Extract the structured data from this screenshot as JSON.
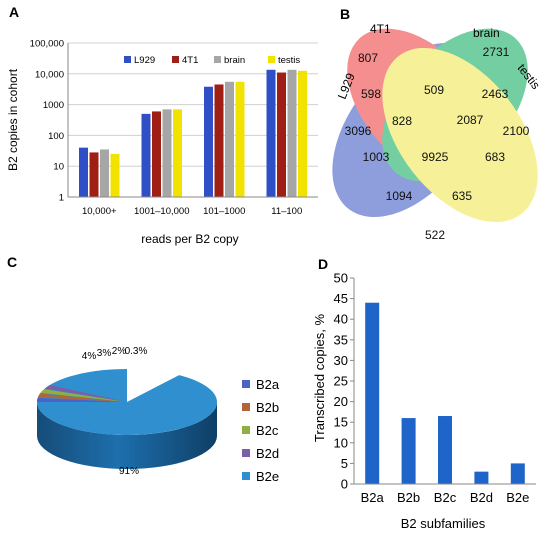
{
  "panel_labels": {
    "a": "A",
    "b": "B",
    "c": "C",
    "d": "D"
  },
  "chart_data": [
    {
      "panel": "A",
      "type": "bar",
      "ylabel": "B2 copies in cohort",
      "xlabel": "reads per B2 copy",
      "yscale": "log",
      "ylim": [
        1,
        100000
      ],
      "yticks": [
        "1",
        "10",
        "100",
        "1000",
        "10,000",
        "100,000"
      ],
      "grid": true,
      "legend_position": "top",
      "categories": [
        "10,000+",
        "1001–10,000",
        "101–1000",
        "11–100"
      ],
      "series": [
        {
          "name": "L929",
          "color": "#2f4fc7",
          "values": [
            40,
            500,
            3800,
            13500
          ]
        },
        {
          "name": "4T1",
          "color": "#a01f15",
          "values": [
            28,
            600,
            4500,
            11000
          ]
        },
        {
          "name": "brain",
          "color": "#a6a6a6",
          "values": [
            35,
            700,
            5500,
            13500
          ]
        },
        {
          "name": "testis",
          "color": "#f2e200",
          "values": [
            25,
            700,
            5500,
            12500
          ]
        }
      ]
    },
    {
      "panel": "B",
      "type": "venn",
      "sets": [
        {
          "name": "L929",
          "color": "#4a63c8"
        },
        {
          "name": "4T1",
          "color": "#f04a4a"
        },
        {
          "name": "brain",
          "color": "#1fb26a"
        },
        {
          "name": "testis",
          "color": "#f2ea5a"
        }
      ],
      "regions": [
        {
          "sets": "4T1 only",
          "value": "807"
        },
        {
          "sets": "brain only",
          "value": "2731"
        },
        {
          "sets": "L929 only",
          "value": "3096"
        },
        {
          "sets": "testis only",
          "value": "2100"
        },
        {
          "sets": "L929+4T1",
          "value": "598"
        },
        {
          "sets": "4T1+brain",
          "value": "509"
        },
        {
          "sets": "brain+testis",
          "value": "2463"
        },
        {
          "sets": "L929+4T1+brain",
          "value": "828"
        },
        {
          "sets": "4T1+brain+testis",
          "value": "2087"
        },
        {
          "sets": "all",
          "value": "9925"
        },
        {
          "sets": "L929+brain",
          "value": "1003"
        },
        {
          "sets": "4T1+testis",
          "value": "683"
        },
        {
          "sets": "L929+brain+testis",
          "value": "1094"
        },
        {
          "sets": "L929+4T1+testis",
          "value": "635"
        },
        {
          "sets": "L929+testis",
          "value": "522"
        }
      ]
    },
    {
      "panel": "C",
      "type": "pie",
      "legend_position": "right",
      "slices": [
        {
          "name": "B2a",
          "value": 4,
          "label": "4%",
          "color": "#4a63c8"
        },
        {
          "name": "B2b",
          "value": 3,
          "label": "3%",
          "color": "#b0653a"
        },
        {
          "name": "B2c",
          "value": 2,
          "label": "2%",
          "color": "#8fb040"
        },
        {
          "name": "B2d",
          "value": 0.3,
          "label": "0.3%",
          "color": "#7b5fa8"
        },
        {
          "name": "B2e",
          "value": 91,
          "label": "91%",
          "color": "#2f8fcf"
        }
      ]
    },
    {
      "panel": "D",
      "type": "bar",
      "ylabel": "Transcribed copies, %",
      "xlabel": "B2 subfamilies",
      "ylim": [
        0,
        50
      ],
      "yticks": [
        "0",
        "5",
        "10",
        "15",
        "20",
        "25",
        "30",
        "35",
        "40",
        "45",
        "50"
      ],
      "grid": false,
      "categories": [
        "B2a",
        "B2b",
        "B2c",
        "B2d",
        "B2e"
      ],
      "values": [
        44,
        16,
        16.5,
        3,
        5
      ],
      "color": "#1f64c8"
    }
  ]
}
